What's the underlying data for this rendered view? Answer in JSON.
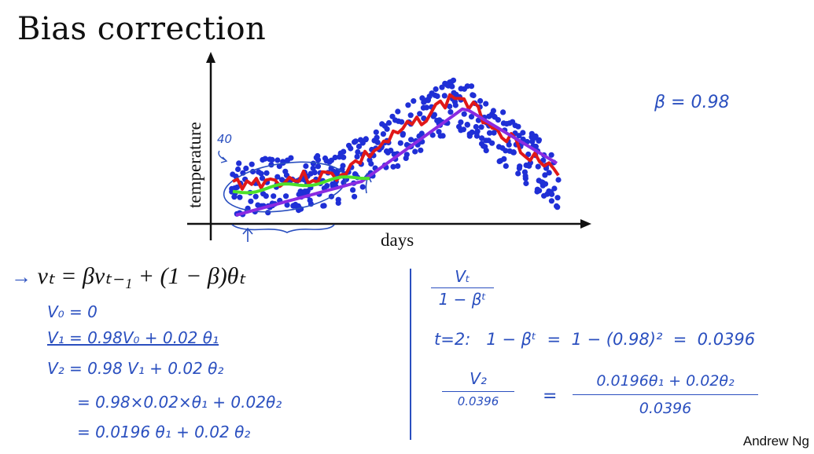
{
  "slide": {
    "title": "Bias correction",
    "footer": "Andrew Ng"
  },
  "plot": {
    "ylabel": "temperature",
    "xlabel": "days",
    "annot_40": "40",
    "colors": {
      "points": "#1f2fd6",
      "red": "#e01818",
      "purple": "#8a2be2",
      "green": "#4de12a",
      "ink": "#2a4fbf"
    }
  },
  "beta_note": "β = 0.98",
  "equation": {
    "arrow": "→",
    "main": "vₜ = βvₜ₋₁ + (1 − β)θₜ"
  },
  "left_notes": {
    "v0": "V₀ = 0",
    "v1": "V₁ = 0.98V₀ + 0.02 θ₁",
    "v2": "V₂ = 0.98 V₁ + 0.02 θ₂",
    "v2b": "= 0.98×0.02×θ₁ + 0.02θ₂",
    "v2c": "= 0.0196 θ₁ + 0.02 θ₂"
  },
  "right_notes": {
    "frac_num": "Vₜ",
    "frac_den": "1 − βᵗ",
    "t2": "t=2:   1 − βᵗ  =  1 − (0.98)²  =  0.0396",
    "v2_num": "V₂",
    "v2_den": "0.0396",
    "eq": "=",
    "rhs_num": "0.0196θ₁ + 0.02θ₂",
    "rhs_den": "0.0396"
  }
}
